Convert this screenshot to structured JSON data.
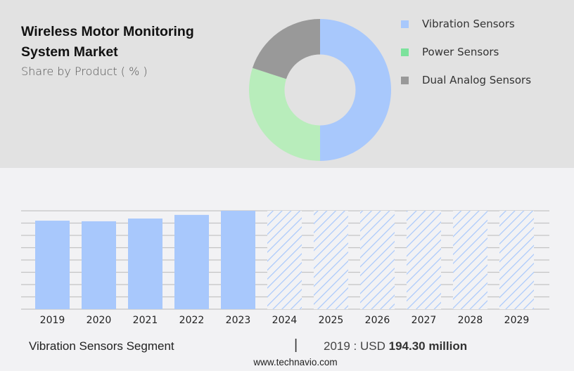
{
  "header": {
    "title": "Wireless Motor Monitoring System Market",
    "subtitle": "Share by Product ( % )"
  },
  "legend": [
    {
      "label": "Vibration Sensors",
      "color": "#a8c8fc"
    },
    {
      "label": "Power Sensors",
      "color": "#7ce29c"
    },
    {
      "label": "Dual Analog Sensors",
      "color": "#999999"
    }
  ],
  "footer": {
    "segment": "Vibration Sensors Segment",
    "separator": "|",
    "value_prefix": "2019 : USD",
    "value": "194.30 million",
    "source": "www.technavio.com"
  },
  "chart_data": [
    {
      "type": "pie",
      "title": "Wireless Motor Monitoring System Market - Share by Product ( % )",
      "hole": 0.5,
      "categories": [
        "Vibration Sensors",
        "Power Sensors",
        "Dual Analog Sensors"
      ],
      "values": [
        50,
        30,
        20
      ],
      "colors": [
        "#a8c8fc",
        "#b8edbb",
        "#999999"
      ],
      "legend_position": "right"
    },
    {
      "type": "bar",
      "title": "Vibration Sensors Segment",
      "categories": [
        "2019",
        "2020",
        "2021",
        "2022",
        "2023",
        "2024",
        "2025",
        "2026",
        "2027",
        "2028",
        "2029"
      ],
      "values": [
        194.3,
        193.0,
        199.0,
        207.0,
        216.0,
        null,
        null,
        null,
        null,
        null,
        null
      ],
      "forecast": [
        false,
        false,
        false,
        false,
        false,
        true,
        true,
        true,
        true,
        true,
        true
      ],
      "forecast_display_value": 216.0,
      "annotation": "2019 : USD 194.30 million",
      "xlabel": "",
      "ylabel": "",
      "ylim": [
        0,
        216
      ],
      "grid": true,
      "colors": {
        "actual": "#a8c8fc",
        "forecast_hatch": "#a8c8fc"
      }
    }
  ]
}
